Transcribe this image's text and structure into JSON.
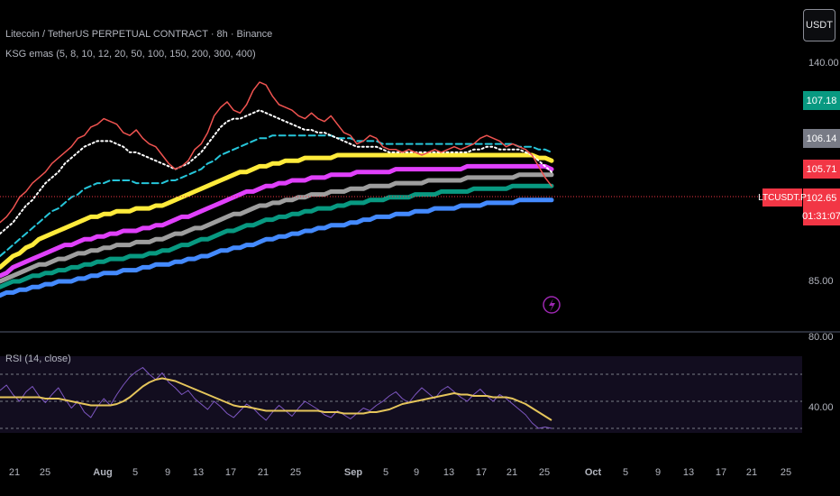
{
  "header": {
    "symbol_title": "Litecoin / TetherUS PERPETUAL CONTRACT · 8h · Binance",
    "indicator_title": "KSG emas (5, 8, 10, 12, 20, 50, 100, 150, 200, 300, 400)",
    "currency_button": "USDT"
  },
  "price_tags": {
    "tag1": {
      "label": "107.18",
      "color": "#089981"
    },
    "tag2": {
      "label": "106.14",
      "color": "#787b86"
    },
    "tag3": {
      "label": "105.71",
      "color": "#f23645"
    },
    "tag4": {
      "label": "102.65",
      "color": "#f23645"
    },
    "countdown": "01:31:07",
    "symbol_tag": "LTCUSDT.P"
  },
  "price_axis": {
    "top_label": "140.00",
    "mid_label": "85.00"
  },
  "rsi": {
    "title": "RSI (14, close)",
    "upper_label": "80.00",
    "lower_label": "40.00"
  },
  "chart_data": [
    {
      "type": "line",
      "title": "Litecoin / TetherUS PERPETUAL CONTRACT · 8h · Binance",
      "x_tick_labels": [
        "21",
        "25",
        "Aug",
        "5",
        "9",
        "13",
        "17",
        "21",
        "25",
        "Sep",
        "5",
        "9",
        "13",
        "17",
        "21",
        "25",
        "Oct",
        "5",
        "9",
        "13",
        "17",
        "21",
        "25"
      ],
      "series": [
        {
          "name": "price",
          "color": "#ef5350",
          "values": [
            90,
            92,
            95,
            99,
            101,
            104,
            106,
            108,
            111,
            113,
            115,
            117,
            120,
            121,
            124,
            125,
            127,
            126,
            125,
            122,
            121,
            123,
            120,
            118,
            117,
            114,
            111,
            109,
            110,
            112,
            116,
            118,
            122,
            128,
            131,
            133,
            130,
            129,
            132,
            137,
            140,
            139,
            135,
            132,
            131,
            130,
            128,
            127,
            129,
            127,
            126,
            128,
            125,
            122,
            121,
            118,
            119,
            121,
            120,
            117,
            116,
            116,
            115,
            116,
            115,
            114,
            115,
            116,
            115,
            116,
            117,
            116,
            117,
            118,
            120,
            121,
            120,
            119,
            117,
            118,
            117,
            116,
            114,
            110,
            106,
            103
          ]
        },
        {
          "name": "EMA",
          "color": "#ffffff",
          "values": [
            86,
            88,
            90,
            93,
            96,
            98,
            101,
            104,
            106,
            108,
            111,
            113,
            115,
            117,
            118,
            119,
            119,
            119,
            118,
            117,
            115,
            115,
            114,
            113,
            112,
            111,
            110,
            109,
            110,
            111,
            113,
            115,
            118,
            121,
            124,
            126,
            127,
            127,
            128,
            129,
            130,
            129,
            128,
            127,
            126,
            125,
            124,
            123,
            123,
            122,
            122,
            121,
            120,
            119,
            118,
            117,
            117,
            117,
            117,
            116,
            115,
            115,
            115,
            115,
            115,
            115,
            115,
            115,
            115,
            115,
            115,
            115,
            115,
            116,
            116,
            117,
            117,
            116,
            116,
            116,
            116,
            115,
            114,
            112,
            110,
            108
          ]
        },
        {
          "name": "EMA",
          "color": "#26c6da",
          "values": [
            78,
            80,
            82,
            84,
            86,
            88,
            90,
            92,
            94,
            95,
            97,
            99,
            100,
            102,
            103,
            104,
            104,
            105,
            105,
            105,
            105,
            104,
            104,
            104,
            104,
            104,
            105,
            105,
            106,
            107,
            108,
            109,
            111,
            112,
            114,
            115,
            116,
            117,
            118,
            119,
            120,
            120,
            121,
            121,
            121,
            121,
            121,
            121,
            121,
            121,
            121,
            121,
            120,
            120,
            120,
            119,
            119,
            119,
            119,
            118,
            118,
            118,
            118,
            118,
            118,
            118,
            118,
            118,
            118,
            118,
            118,
            118,
            118,
            118,
            118,
            118,
            118,
            118,
            118,
            118,
            117,
            117,
            117,
            116,
            116,
            115
          ]
        },
        {
          "name": "EMA",
          "color": "#ffeb3b",
          "values": [
            74,
            76,
            78,
            79,
            81,
            82,
            84,
            85,
            86,
            87,
            88,
            89,
            90,
            91,
            92,
            92,
            93,
            93,
            94,
            94,
            94,
            95,
            95,
            95,
            96,
            96,
            97,
            98,
            99,
            100,
            101,
            102,
            103,
            104,
            105,
            106,
            107,
            108,
            108,
            109,
            110,
            110,
            111,
            111,
            112,
            112,
            112,
            113,
            113,
            113,
            113,
            113,
            114,
            114,
            114,
            114,
            114,
            114,
            114,
            114,
            114,
            114,
            114,
            114,
            114,
            114,
            114,
            114,
            114,
            114,
            114,
            114,
            114,
            114,
            114,
            114,
            114,
            114,
            114,
            114,
            114,
            114,
            114,
            113,
            113,
            112
          ]
        },
        {
          "name": "EMA",
          "color": "#e040fb",
          "values": [
            71,
            72,
            74,
            75,
            76,
            77,
            78,
            79,
            80,
            81,
            82,
            82,
            83,
            84,
            84,
            85,
            85,
            86,
            86,
            87,
            87,
            87,
            88,
            88,
            89,
            89,
            90,
            91,
            92,
            92,
            93,
            94,
            95,
            96,
            97,
            98,
            99,
            100,
            101,
            101,
            102,
            103,
            103,
            104,
            104,
            105,
            105,
            105,
            106,
            106,
            106,
            107,
            107,
            107,
            107,
            108,
            108,
            108,
            108,
            108,
            108,
            109,
            109,
            109,
            109,
            109,
            109,
            109,
            109,
            109,
            109,
            109,
            110,
            110,
            110,
            110,
            110,
            110,
            110,
            110,
            110,
            110,
            110,
            110,
            110,
            109
          ]
        },
        {
          "name": "EMA",
          "color": "#9e9e9e",
          "values": [
            69,
            70,
            71,
            72,
            73,
            74,
            75,
            75,
            76,
            77,
            77,
            78,
            79,
            79,
            80,
            80,
            81,
            81,
            82,
            82,
            82,
            83,
            83,
            83,
            84,
            84,
            85,
            86,
            86,
            87,
            88,
            88,
            89,
            90,
            91,
            92,
            93,
            93,
            94,
            95,
            96,
            96,
            97,
            97,
            98,
            98,
            99,
            99,
            100,
            100,
            100,
            101,
            101,
            101,
            102,
            102,
            102,
            103,
            103,
            103,
            103,
            104,
            104,
            104,
            104,
            104,
            105,
            105,
            105,
            105,
            105,
            105,
            106,
            106,
            106,
            106,
            106,
            106,
            106,
            106,
            107,
            107,
            107,
            107,
            107,
            107
          ]
        },
        {
          "name": "EMA",
          "color": "#089981",
          "values": [
            67,
            68,
            69,
            69,
            70,
            71,
            71,
            72,
            72,
            73,
            73,
            74,
            74,
            75,
            75,
            76,
            76,
            77,
            77,
            77,
            78,
            78,
            78,
            79,
            79,
            80,
            80,
            81,
            82,
            82,
            83,
            84,
            84,
            85,
            86,
            87,
            87,
            88,
            89,
            89,
            90,
            91,
            91,
            92,
            92,
            93,
            93,
            94,
            94,
            95,
            95,
            95,
            96,
            96,
            97,
            97,
            97,
            98,
            98,
            98,
            99,
            99,
            99,
            99,
            100,
            100,
            100,
            100,
            101,
            101,
            101,
            101,
            101,
            102,
            102,
            102,
            102,
            102,
            102,
            103,
            103,
            103,
            103,
            103,
            103,
            103
          ]
        },
        {
          "name": "EMA",
          "color": "#448aff",
          "values": [
            64,
            65,
            65,
            66,
            66,
            67,
            67,
            68,
            68,
            69,
            69,
            69,
            70,
            70,
            71,
            71,
            72,
            72,
            72,
            73,
            73,
            73,
            74,
            74,
            75,
            75,
            75,
            76,
            76,
            77,
            77,
            78,
            78,
            79,
            80,
            80,
            81,
            81,
            82,
            82,
            83,
            84,
            84,
            85,
            85,
            86,
            86,
            87,
            87,
            88,
            88,
            89,
            89,
            89,
            90,
            90,
            91,
            91,
            92,
            92,
            92,
            93,
            93,
            93,
            94,
            94,
            94,
            95,
            95,
            95,
            95,
            96,
            96,
            96,
            96,
            97,
            97,
            97,
            97,
            97,
            98,
            98,
            98,
            98,
            98,
            98
          ]
        }
      ],
      "ylim": [
        60,
        150
      ],
      "grid": false
    },
    {
      "type": "line",
      "title": "RSI (14, close)",
      "series": [
        {
          "name": "RSI",
          "color": "#7e57c2",
          "values": [
            58,
            62,
            55,
            50,
            57,
            61,
            54,
            49,
            55,
            60,
            52,
            45,
            50,
            42,
            38,
            46,
            52,
            47,
            55,
            62,
            68,
            72,
            75,
            70,
            66,
            71,
            64,
            60,
            55,
            58,
            52,
            48,
            44,
            50,
            46,
            41,
            38,
            43,
            48,
            45,
            40,
            36,
            42,
            47,
            43,
            39,
            45,
            50,
            47,
            44,
            40,
            38,
            43,
            40,
            37,
            41,
            45,
            43,
            47,
            50,
            54,
            57,
            52,
            49,
            55,
            60,
            56,
            52,
            58,
            61,
            57,
            53,
            50,
            55,
            59,
            54,
            50,
            55,
            52,
            48,
            44,
            40,
            34,
            30,
            31,
            30
          ]
        },
        {
          "name": "RSI-based MA",
          "color": "#e5c55b",
          "values": [
            53,
            53,
            53,
            53,
            53,
            53,
            53,
            52,
            52,
            52,
            51,
            50,
            49,
            48,
            47,
            47,
            47,
            47,
            48,
            50,
            53,
            57,
            61,
            64,
            66,
            67,
            66,
            65,
            63,
            61,
            59,
            57,
            55,
            53,
            51,
            49,
            47,
            46,
            46,
            45,
            44,
            43,
            43,
            43,
            43,
            43,
            43,
            43,
            43,
            43,
            42,
            42,
            42,
            41,
            41,
            41,
            41,
            42,
            42,
            43,
            44,
            46,
            48,
            49,
            50,
            51,
            52,
            53,
            54,
            55,
            56,
            55,
            55,
            54,
            54,
            54,
            53,
            53,
            53,
            52,
            50,
            48,
            45,
            42,
            39,
            36
          ]
        }
      ],
      "ylim": [
        20,
        90
      ],
      "reference_lines": [
        70,
        50,
        30
      ]
    }
  ]
}
